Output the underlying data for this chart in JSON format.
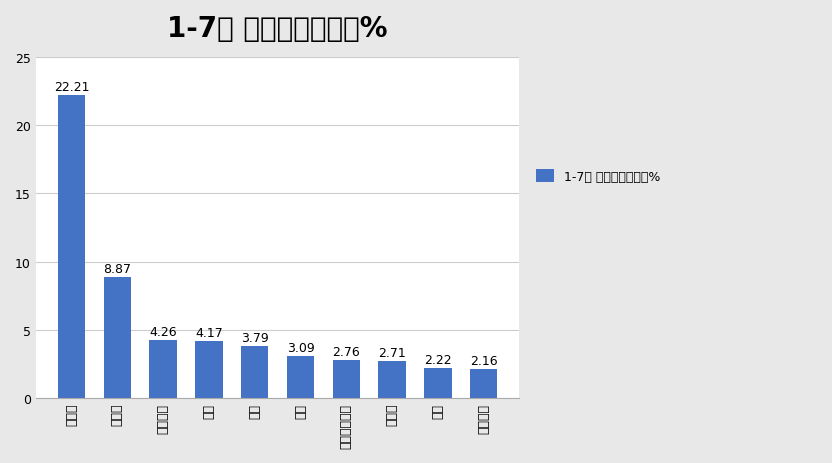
{
  "title": "1-7月 占据的市场份额%",
  "categories": [
    "俄罗斯",
    "墨西哥",
    "澳大利亚",
    "智利",
    "越南",
    "沙特",
    "乌兹别克斯坦",
    "菲律宾",
    "秘鲁",
    "厄瓜多尔"
  ],
  "values": [
    22.21,
    8.87,
    4.26,
    4.17,
    3.79,
    3.09,
    2.76,
    2.71,
    2.22,
    2.16
  ],
  "bar_color": "#4472c4",
  "legend_label": "1-7月 占据的市场份额%",
  "ylim": [
    0,
    25
  ],
  "yticks": [
    0,
    5,
    10,
    15,
    20,
    25
  ],
  "background_color": "#e8e8e8",
  "plot_bg_color": "#ffffff",
  "title_fontsize": 20,
  "label_fontsize": 9,
  "tick_fontsize": 9,
  "legend_fontsize": 9
}
